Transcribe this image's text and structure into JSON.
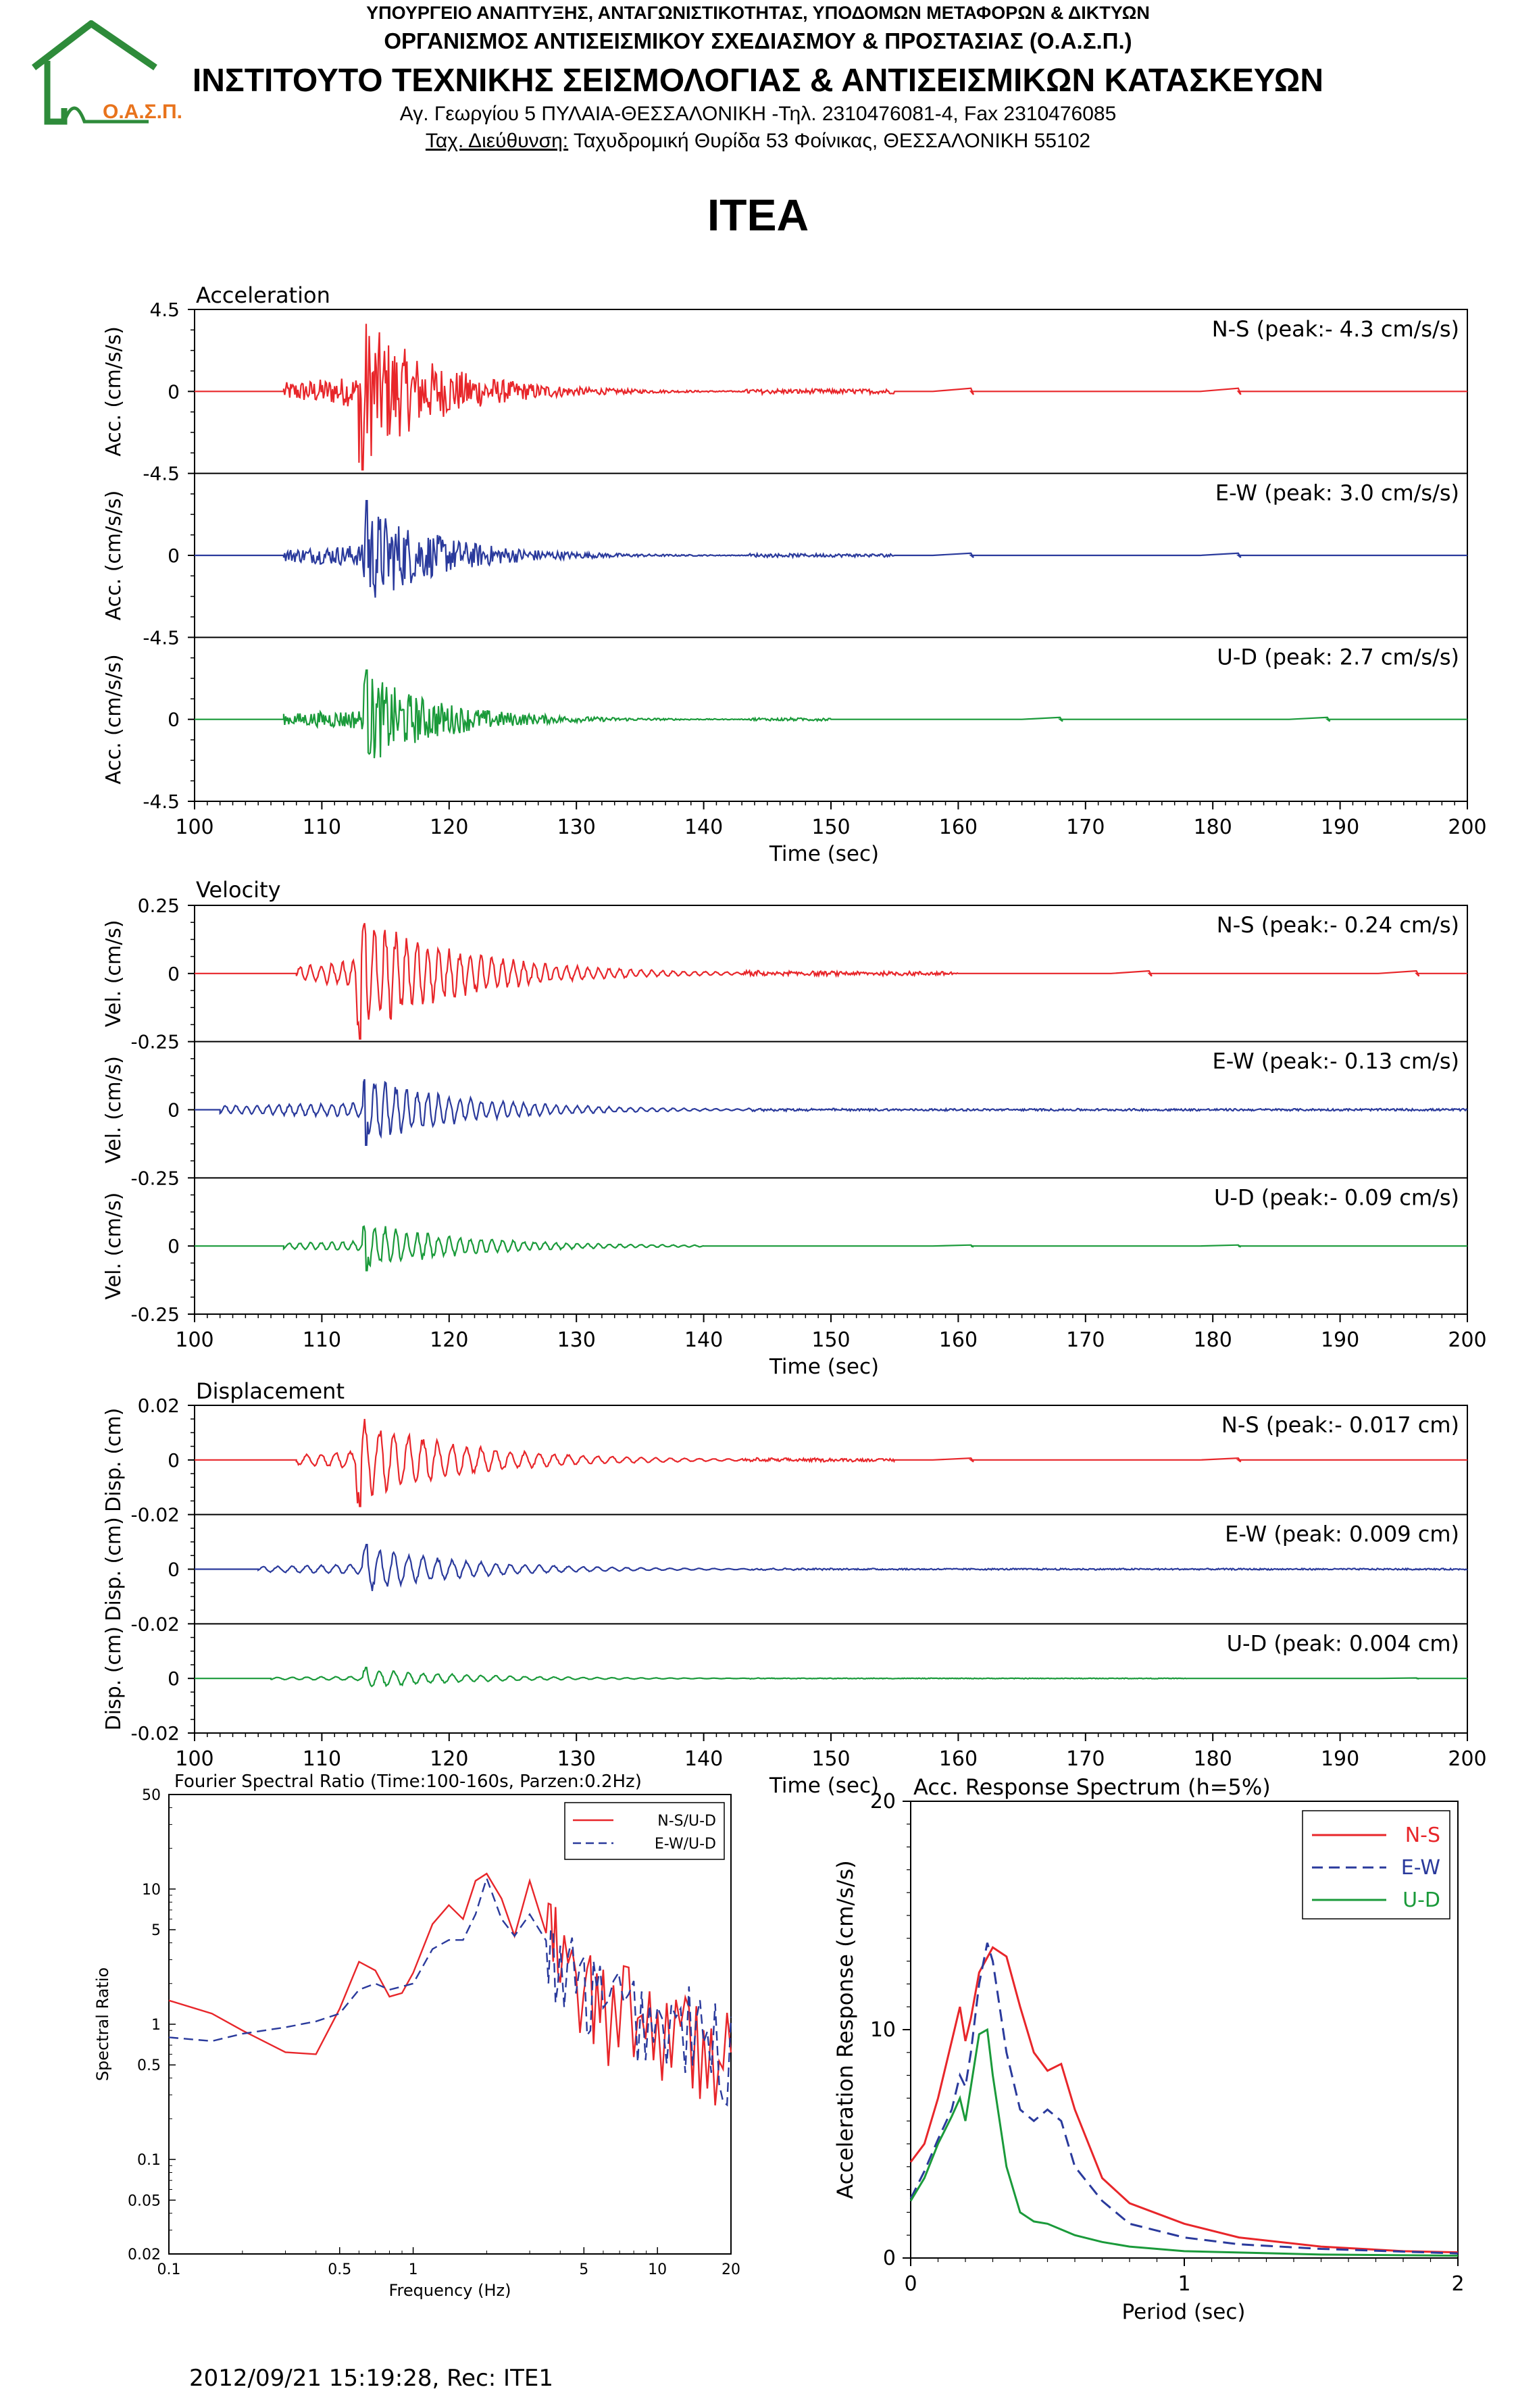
{
  "header": {
    "ministry": "ΥΠΟΥΡΓΕΙΟ ΑΝΑΠΤΥΞΗΣ, ΑΝΤΑΓΩΝΙΣΤΙΚΟΤΗΤΑΣ, ΥΠΟΔΟΜΩΝ ΜΕΤΑΦΟΡΩΝ & ΔΙΚΤΥΩΝ",
    "organization": "ΟΡΓΑΝΙΣΜΟΣ ΑΝΤΙΣΕΙΣΜΙΚΟΥ ΣΧΕΔΙΑΣΜΟΥ & ΠΡΟΣΤΑΣΙΑΣ (Ο.Α.Σ.Π.)",
    "institute": "ΙΝΣΤΙΤΟΥΤΟ ΤΕΧΝΙΚΗΣ ΣΕΙΣΜΟΛΟΓΙΑΣ & ΑΝΤΙΣΕΙΣΜΙΚΩΝ ΚΑΤΑΣΚΕΥΩΝ",
    "address": "Αγ. Γεωργίου 5 ΠΥΛΑΙΑ-ΘΕΣΣΑΛΟΝΙΚΗ -Τηλ. 2310476081-4,  Fax 2310476085",
    "postal_label": "Ταχ. Διεύθυνση:",
    "postal": " Ταχυδρομική Θυρίδα 53 Φοίνικας, ΘΕΣΣΑΛΟΝΙΚΗ 55102",
    "logo_text": "Ο.Α.Σ.Π.",
    "logo_color": "#2e8b3a",
    "logo_text_color": "#e8731c"
  },
  "station": "ITEA",
  "footer": "2012/09/21 15:19:28, Rec: ITE1",
  "colors": {
    "ns": "#e8262a",
    "ew": "#2a3a9c",
    "ud": "#1a9a3a"
  },
  "chart_data": [
    {
      "type": "line",
      "title": "Acceleration",
      "xlabel": "Time (sec)",
      "ylabel": "Acc. (cm/s/s)",
      "xlim": [
        100,
        200
      ],
      "xticks": [
        "100",
        "110",
        "120",
        "130",
        "140",
        "150",
        "160",
        "170",
        "180",
        "190",
        "200"
      ],
      "ylim": [
        -4.5,
        4.5
      ],
      "yticks": [
        "4.5",
        "0",
        "-4.5"
      ],
      "series": [
        {
          "name": "N-S",
          "label": "N-S (peak:- 4.3 cm/s/s)",
          "peak": -4.3,
          "onset": 107,
          "main": 113.2,
          "end": 155
        },
        {
          "name": "E-W",
          "label": "E-W (peak: 3.0 cm/s/s)",
          "peak": 3.0,
          "onset": 107,
          "main": 113.5,
          "end": 155
        },
        {
          "name": "U-D",
          "label": "U-D (peak: 2.7 cm/s/s)",
          "peak": 2.7,
          "onset": 107,
          "main": 113.5,
          "end": 150
        }
      ]
    },
    {
      "type": "line",
      "title": "Velocity",
      "xlabel": "Time (sec)",
      "ylabel": "Vel. (cm/s)",
      "xlim": [
        100,
        200
      ],
      "xticks": [
        "100",
        "110",
        "120",
        "130",
        "140",
        "150",
        "160",
        "170",
        "180",
        "190",
        "200"
      ],
      "ylim": [
        -0.25,
        0.25
      ],
      "yticks": [
        "0.25",
        "0",
        "-0.25"
      ],
      "series": [
        {
          "name": "N-S",
          "label": "N-S (peak:- 0.24 cm/s)",
          "peak": -0.24,
          "onset": 108,
          "main": 113.0,
          "end": 160
        },
        {
          "name": "E-W",
          "label": "E-W (peak:- 0.13 cm/s)",
          "peak": -0.13,
          "onset": 102,
          "main": 113.5,
          "end": 200
        },
        {
          "name": "U-D",
          "label": "U-D (peak:- 0.09 cm/s)",
          "peak": -0.09,
          "onset": 107,
          "main": 113.5,
          "end": 140
        }
      ]
    },
    {
      "type": "line",
      "title": "Displacement",
      "xlabel": "Time (sec)",
      "ylabel": "Disp. (cm)",
      "xlim": [
        100,
        200
      ],
      "xticks": [
        "100",
        "110",
        "120",
        "130",
        "140",
        "150",
        "160",
        "170",
        "180",
        "190",
        "200"
      ],
      "ylim": [
        -0.02,
        0.02
      ],
      "yticks": [
        "0.02",
        "0",
        "-0.02"
      ],
      "series": [
        {
          "name": "N-S",
          "label": "N-S (peak:- 0.017 cm)",
          "peak": -0.017,
          "onset": 108,
          "main": 113.0,
          "end": 155
        },
        {
          "name": "E-W",
          "label": "E-W (peak: 0.009 cm)",
          "peak": 0.009,
          "onset": 105,
          "main": 113.5,
          "end": 200
        },
        {
          "name": "U-D",
          "label": "U-D (peak: 0.004 cm)",
          "peak": 0.004,
          "onset": 106,
          "main": 113.5,
          "end": 178
        }
      ]
    },
    {
      "type": "line",
      "title": "Fourier Spectral Ratio (Time:100-160s, Parzen:0.2Hz)",
      "xlabel": "Frequency (Hz)",
      "ylabel": "Spectral Ratio",
      "xscale": "log",
      "yscale": "log",
      "xlim": [
        0.1,
        20
      ],
      "ylim": [
        0.02,
        50
      ],
      "xticks": [
        "0.1",
        "0.5",
        "1",
        "5",
        "10",
        "20"
      ],
      "yticks": [
        "50",
        "10",
        "5",
        "1",
        "0.5",
        "0.1",
        "0.05",
        "0.02"
      ],
      "legend": "top-right",
      "series": [
        {
          "name": "N-S/U-D",
          "x": [
            0.1,
            0.15,
            0.2,
            0.3,
            0.4,
            0.5,
            0.6,
            0.7,
            0.8,
            0.9,
            1.0,
            1.2,
            1.4,
            1.6,
            1.8,
            2.0,
            2.3,
            2.6,
            3.0,
            3.5,
            4.0,
            5,
            6,
            8,
            10,
            13,
            16,
            20
          ],
          "y": [
            1.5,
            1.2,
            0.9,
            0.62,
            0.6,
            1.3,
            2.9,
            2.5,
            1.6,
            1.7,
            2.4,
            5.5,
            7.6,
            6.0,
            11.5,
            13.0,
            8.5,
            4.5,
            11.5,
            6.0,
            2.5,
            1.6,
            1.2,
            1.1,
            0.9,
            0.8,
            0.6,
            0.5
          ]
        },
        {
          "name": "E-W/U-D",
          "x": [
            0.1,
            0.15,
            0.2,
            0.3,
            0.4,
            0.5,
            0.6,
            0.7,
            0.8,
            0.9,
            1.0,
            1.2,
            1.4,
            1.6,
            1.8,
            2.0,
            2.3,
            2.6,
            3.0,
            3.5,
            4.0,
            5,
            6,
            8,
            10,
            13,
            16,
            20
          ],
          "y": [
            0.8,
            0.75,
            0.85,
            0.95,
            1.05,
            1.2,
            1.8,
            2.0,
            1.8,
            1.9,
            2.0,
            3.6,
            4.2,
            4.2,
            6.5,
            12.0,
            6.0,
            4.5,
            6.5,
            4.0,
            2.2,
            1.8,
            1.3,
            1.2,
            1.0,
            0.85,
            0.7,
            0.55
          ]
        }
      ]
    },
    {
      "type": "line",
      "title": "Acc. Response Spectrum (h=5%)",
      "xlabel": "Period (sec)",
      "ylabel": "Acceleration Response (cm/s/s)",
      "xlim": [
        0,
        2
      ],
      "ylim": [
        0,
        20
      ],
      "xticks": [
        "0",
        "1",
        "2"
      ],
      "yticks": [
        "20",
        "10",
        "0"
      ],
      "legend": "top-right",
      "series": [
        {
          "name": "N-S",
          "x": [
            0,
            0.05,
            0.1,
            0.15,
            0.18,
            0.2,
            0.22,
            0.25,
            0.3,
            0.35,
            0.4,
            0.45,
            0.5,
            0.55,
            0.6,
            0.7,
            0.8,
            1.0,
            1.2,
            1.5,
            1.8,
            2.0
          ],
          "y": [
            4.2,
            5.0,
            7.0,
            9.5,
            11.0,
            9.5,
            10.5,
            12.5,
            13.6,
            13.2,
            11.0,
            9.0,
            8.2,
            8.5,
            6.5,
            3.5,
            2.4,
            1.5,
            0.9,
            0.5,
            0.3,
            0.25
          ]
        },
        {
          "name": "E-W",
          "x": [
            0,
            0.05,
            0.1,
            0.15,
            0.18,
            0.2,
            0.22,
            0.25,
            0.28,
            0.3,
            0.35,
            0.4,
            0.45,
            0.5,
            0.55,
            0.6,
            0.7,
            0.8,
            1.0,
            1.2,
            1.5,
            2.0
          ],
          "y": [
            2.6,
            3.8,
            5.2,
            6.5,
            8.0,
            7.5,
            9.0,
            12.0,
            13.8,
            13.0,
            9.0,
            6.5,
            6.0,
            6.5,
            6.0,
            4.0,
            2.5,
            1.5,
            0.9,
            0.6,
            0.4,
            0.2
          ]
        },
        {
          "name": "U-D",
          "x": [
            0,
            0.05,
            0.1,
            0.15,
            0.18,
            0.2,
            0.22,
            0.25,
            0.28,
            0.3,
            0.35,
            0.4,
            0.45,
            0.5,
            0.6,
            0.7,
            0.8,
            1.0,
            1.5,
            2.0
          ],
          "y": [
            2.5,
            3.5,
            5.0,
            6.2,
            7.0,
            6.0,
            7.5,
            9.8,
            10.0,
            8.0,
            4.0,
            2.0,
            1.6,
            1.5,
            1.0,
            0.7,
            0.5,
            0.3,
            0.15,
            0.1
          ]
        }
      ]
    }
  ]
}
